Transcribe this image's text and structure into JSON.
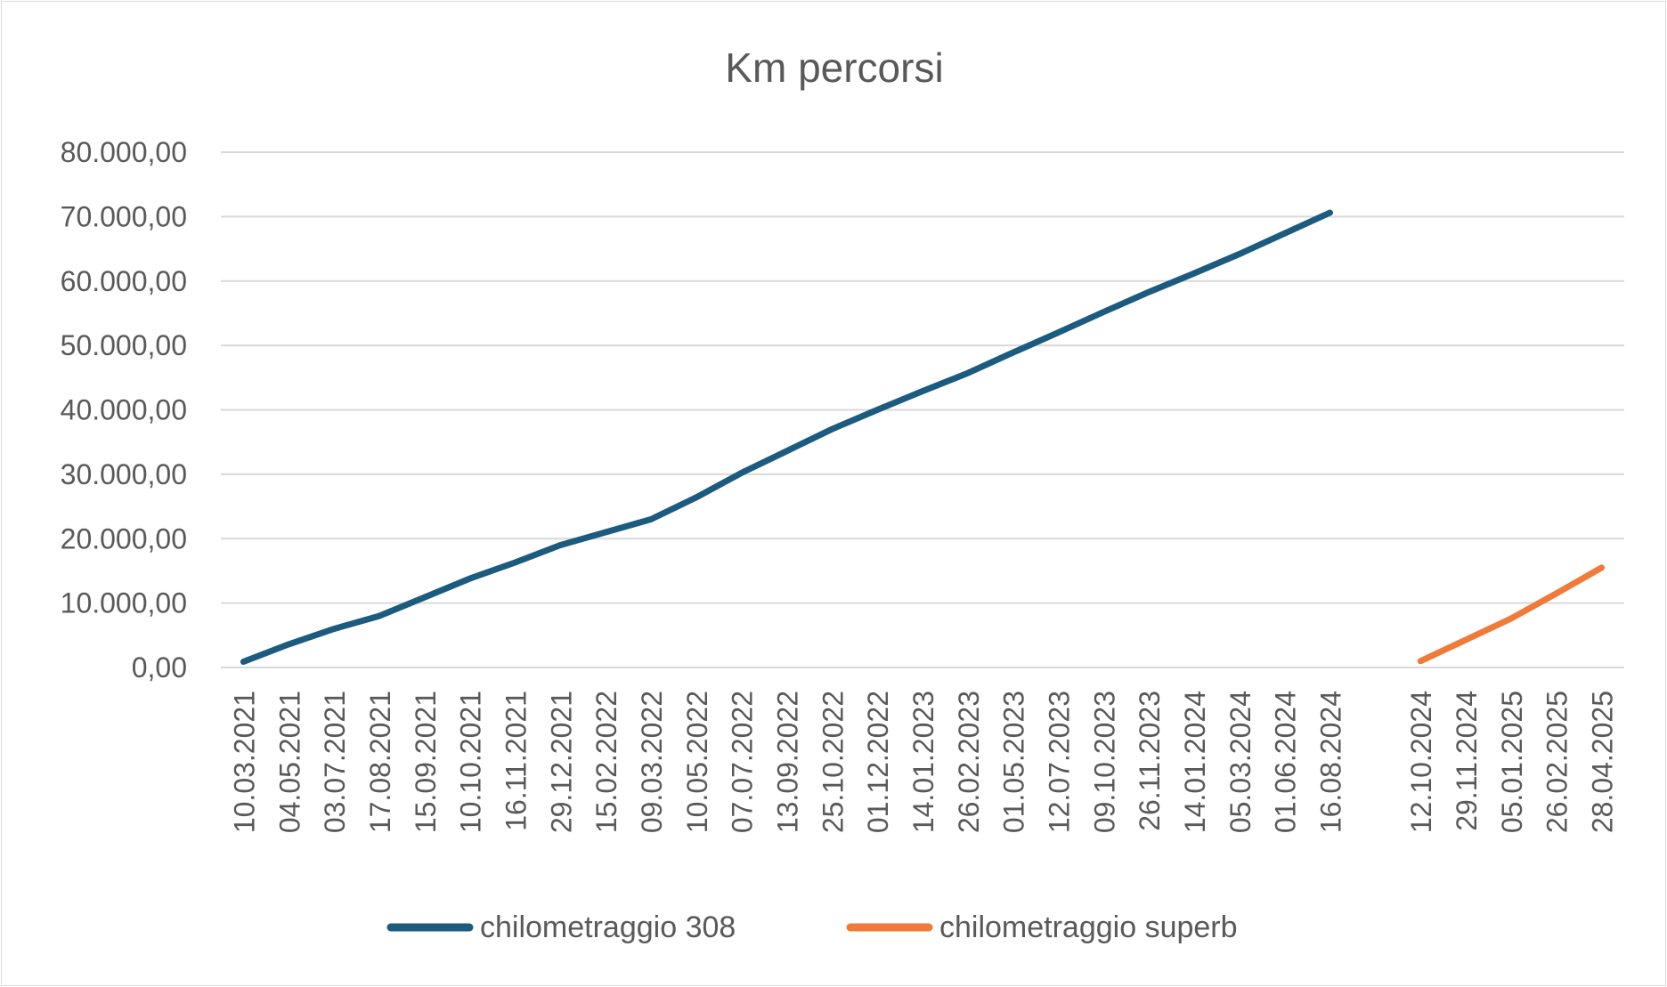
{
  "chart_data": {
    "type": "line",
    "title": "Km percorsi",
    "xlabel": "",
    "ylabel": "",
    "ylim": [
      0,
      80000
    ],
    "y_ticks": [
      "0,00",
      "10.000,00",
      "20.000,00",
      "30.000,00",
      "40.000,00",
      "50.000,00",
      "60.000,00",
      "70.000,00",
      "80.000,00"
    ],
    "y_tick_values": [
      0,
      10000,
      20000,
      30000,
      40000,
      50000,
      60000,
      70000,
      80000
    ],
    "categories": [
      "10.03.2021",
      "04.05.2021",
      "03.07.2021",
      "17.08.2021",
      "15.09.2021",
      "10.10.2021",
      "16.11.2021",
      "29.12.2021",
      "15.02.2022",
      "09.03.2022",
      "10.05.2022",
      "07.07.2022",
      "13.09.2022",
      "25.10.2022",
      "01.12.2022",
      "14.01.2023",
      "26.02.2023",
      "01.05.2023",
      "12.07.2023",
      "09.10.2023",
      "26.11.2023",
      "14.01.2024",
      "05.03.2024",
      "01.06.2024",
      "16.08.2024",
      "",
      "12.10.2024",
      "29.11.2024",
      "05.01.2025",
      "26.02.2025",
      "28.04.2025"
    ],
    "grid": true,
    "legend_position": "bottom",
    "series": [
      {
        "name": "chilometraggio 308",
        "color": "#1b5b7f",
        "values": [
          900,
          3600,
          6000,
          8000,
          10900,
          13800,
          16300,
          19000,
          21000,
          23000,
          26400,
          30200,
          33600,
          37000,
          40000,
          42900,
          45700,
          48900,
          52000,
          55200,
          58300,
          61200,
          64200,
          67400,
          70600,
          null,
          null,
          null,
          null,
          null,
          null
        ]
      },
      {
        "name": "chilometraggio superb",
        "color": "#f07a3a",
        "values": [
          null,
          null,
          null,
          null,
          null,
          null,
          null,
          null,
          null,
          null,
          null,
          null,
          null,
          null,
          null,
          null,
          null,
          null,
          null,
          null,
          null,
          null,
          null,
          null,
          null,
          null,
          1000,
          4300,
          7600,
          11500,
          15500
        ]
      }
    ]
  }
}
